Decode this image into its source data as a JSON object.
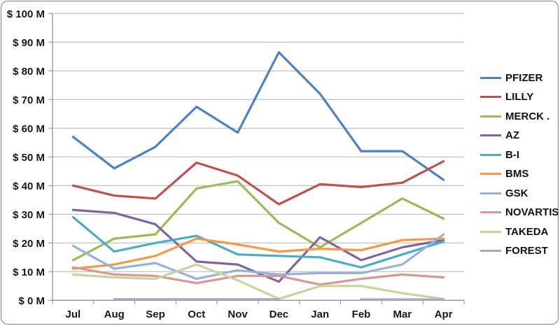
{
  "chart": {
    "background": "#ffffff",
    "border_color": "#7f7f7f",
    "gridline_color": "#b3b3b3",
    "axis_color": "#8c8c8c",
    "text_color": "#171717"
  },
  "axes": {
    "y_tick_labels": [
      "$ 100 M",
      "$ 90 M",
      "$ 80 M",
      "$ 70 M",
      "$ 60 M",
      "$ 50 M",
      "$ 40 M",
      "$ 30 M",
      "$ 20 M",
      "$ 10 M",
      "$ 0 M"
    ],
    "x_tick_labels": [
      "Jul",
      "Aug",
      "Sep",
      "Oct",
      "Nov",
      "Dec",
      "Jan",
      "Feb",
      "Mar",
      "Apr"
    ]
  },
  "chart_data": {
    "type": "line",
    "title": "",
    "xlabel": "",
    "ylabel": "",
    "ylim": [
      0,
      100
    ],
    "y_tick_step": 10,
    "grid": true,
    "legend_position": "right",
    "categories": [
      "Jul",
      "Aug",
      "Sep",
      "Oct",
      "Nov",
      "Dec",
      "Jan",
      "Feb",
      "Mar",
      "Apr"
    ],
    "series": [
      {
        "name": "PFIZER",
        "color": "#4F81BD",
        "values": [
          57,
          46,
          53.5,
          67.5,
          58.5,
          86.5,
          72,
          52,
          52,
          42
        ]
      },
      {
        "name": "LILLY",
        "color": "#C0504D",
        "values": [
          40,
          36.5,
          35.5,
          48,
          43.5,
          33.5,
          40.5,
          39.5,
          41,
          48.5
        ]
      },
      {
        "name": "MERCK .",
        "color": "#9BBB59",
        "values": [
          14,
          21.5,
          23,
          39,
          41.5,
          27,
          18.5,
          27,
          35.5,
          28.5
        ]
      },
      {
        "name": "AZ",
        "color": "#8064A2",
        "values": [
          31.5,
          30.5,
          26.5,
          13.5,
          12.5,
          6.5,
          22,
          14,
          18.5,
          21
        ]
      },
      {
        "name": "B-I",
        "color": "#4BACC6",
        "values": [
          29,
          17,
          20,
          22.5,
          16,
          15.5,
          15,
          11.5,
          16,
          20.5
        ]
      },
      {
        "name": "BMS",
        "color": "#F79646",
        "values": [
          11,
          12.5,
          15.5,
          21.5,
          19.5,
          17,
          18,
          17.5,
          21,
          21.5
        ]
      },
      {
        "name": "GSK",
        "color": "#95B3D7",
        "values": [
          19,
          11,
          13,
          7.5,
          10.5,
          9,
          9.5,
          9.5,
          12.5,
          23
        ]
      },
      {
        "name": "NOVARTIS",
        "color": "#D99694",
        "values": [
          11.5,
          9,
          8.5,
          6,
          8.5,
          8.5,
          5.5,
          7.5,
          9,
          8
        ]
      },
      {
        "name": "TAKEDA",
        "color": "#C3D69B",
        "values": [
          9,
          8,
          7.5,
          12.5,
          7,
          0.5,
          5,
          5,
          2.5,
          0.5
        ]
      },
      {
        "name": "FOREST",
        "color": "#B3A2C7",
        "values": [
          null,
          0.4,
          0.4,
          0.4,
          0.4,
          0.35,
          null,
          0.3,
          0.3,
          0.3
        ]
      }
    ]
  }
}
